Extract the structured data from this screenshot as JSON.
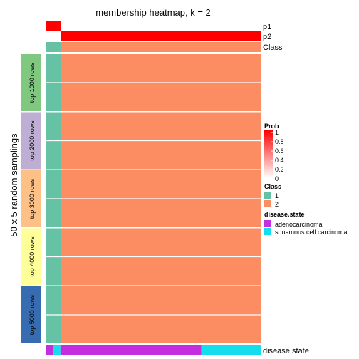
{
  "chart_data": {
    "type": "heatmap",
    "title": "membership heatmap, k = 2",
    "ylabel": "50 x 5 random samplings",
    "annotation_rows": [
      {
        "name": "p1",
        "values": [
          1,
          0
        ]
      },
      {
        "name": "p2",
        "values": [
          0,
          1
        ]
      },
      {
        "name": "Class",
        "values": [
          1,
          2
        ]
      }
    ],
    "column_widths": [
      1,
      13
    ],
    "groups": [
      {
        "label": "top 1000 rows",
        "color": "#80C780"
      },
      {
        "label": "top 2000 rows",
        "color": "#BEAED4"
      },
      {
        "label": "top 3000 rows",
        "color": "#FDC086"
      },
      {
        "label": "top 4000 rows",
        "color": "#FFFF99"
      },
      {
        "label": "top 5000 rows",
        "color": "#386CB0"
      }
    ],
    "body_classes": [
      1,
      2
    ],
    "class_colors": {
      "1": "#66C2A5",
      "2": "#FC8D62"
    },
    "bottom_annotation": {
      "name": "disease.state",
      "segments": [
        {
          "state": "adenocarcinoma",
          "width": 1
        },
        {
          "state": "squamous cell carcinoma",
          "width": 1
        },
        {
          "state": "adenocarcinoma",
          "width": 19
        },
        {
          "state": "squamous cell carcinoma",
          "width": 8
        }
      ]
    },
    "legends": [
      {
        "title": "Prob",
        "type": "continuous",
        "ticks": [
          "1",
          "0.8",
          "0.6",
          "0.4",
          "0.2",
          "0"
        ],
        "colors": [
          "#FF0000",
          "#FFFFFF"
        ]
      },
      {
        "title": "Class",
        "type": "discrete",
        "items": [
          {
            "label": "1",
            "color": "#66C2A5"
          },
          {
            "label": "2",
            "color": "#FC8D62"
          }
        ]
      },
      {
        "title": "disease.state",
        "type": "discrete",
        "items": [
          {
            "label": "adenocarcinoma",
            "color": "#C42EE0"
          },
          {
            "label": "squamous cell carcinoma",
            "color": "#14DEED"
          }
        ]
      }
    ]
  }
}
